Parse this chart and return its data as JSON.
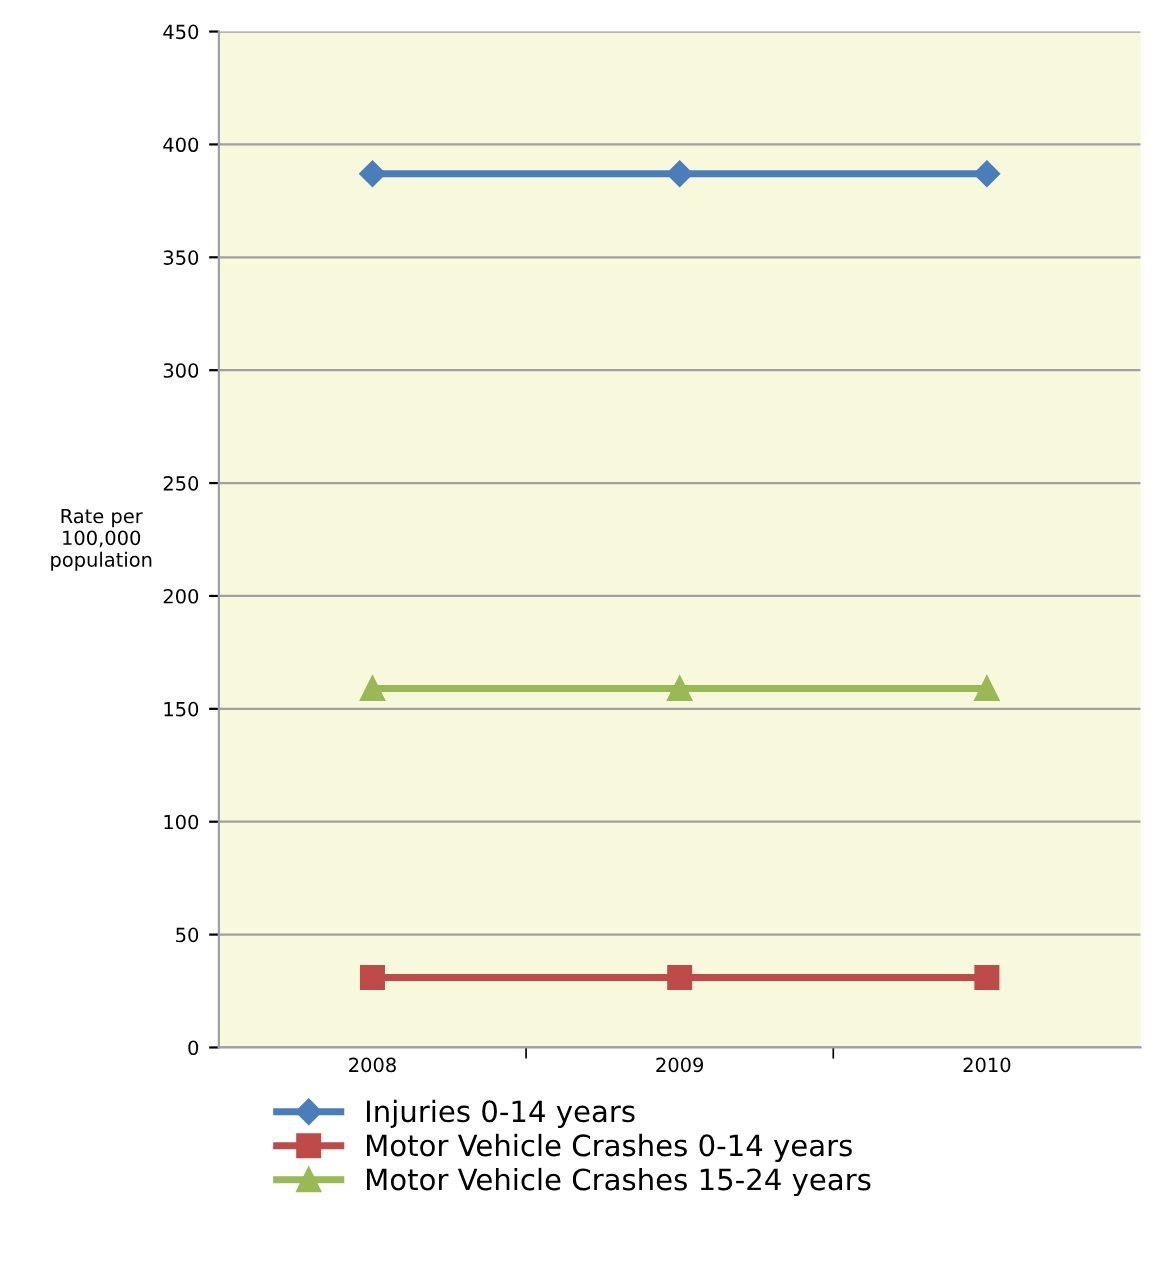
{
  "chart_data": {
    "type": "line",
    "ylabel": "Rate per\n100,000\npopulation",
    "categories": [
      "2008",
      "2009",
      "2010"
    ],
    "series": [
      {
        "name": "Injuries 0-14 years",
        "color": "#4a7ebb",
        "values": [
          387,
          387,
          387
        ],
        "marker": "diamond"
      },
      {
        "name": "Motor Vehicle Crashes 0-14 years",
        "color": "#be4b48",
        "values": [
          31,
          31,
          31
        ],
        "marker": "square"
      },
      {
        "name": "Motor Vehicle Crashes 15-24 years",
        "color": "#98b954",
        "values": [
          159,
          159,
          159
        ],
        "marker": "triangle"
      }
    ],
    "ylim": [
      0,
      450
    ],
    "yticks": [
      0,
      50,
      100,
      150,
      200,
      250,
      300,
      350,
      400,
      450
    ],
    "grid": "y",
    "legend": "bottom"
  }
}
